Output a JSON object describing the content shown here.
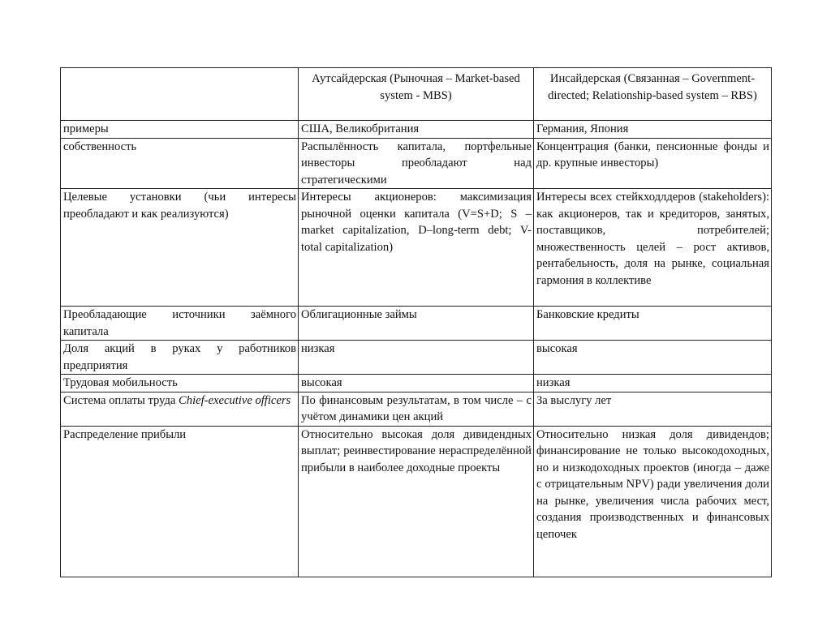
{
  "table": {
    "header": [
      "",
      "Аутсайдерская (Рыночная – Market-based system - MBS)",
      "Инсайдерская (Связанная – Government-directed; Relationship-based system – RBS)"
    ],
    "rows": [
      [
        "примеры",
        "США, Великобритания",
        "Германия, Япония"
      ],
      [
        "собственность",
        "Распылённость капитала, портфельные инвесторы преобладают над стратегическими",
        "Концентрация (банки, пенсионные фонды и др. крупные инвесторы)"
      ],
      [
        "Целевые установки (чьи интересы преобладают и как реализуются)",
        "Интересы акционеров: максимизация рыночной оценки капитала (V=S+D; S – market capitalization, D–long-term debt; V- total capitalization)",
        "Интересы всех стейкходлдеров (stakeholders): как акционеров, так и кредиторов, занятых, поставщиков, потребителей; множественность целей – рост активов, рентабельность, доля на рынке, социальная гармония в коллективе"
      ],
      [
        "Преобладающие источники заёмного капитала",
        "Облигационные займы",
        "Банковские кредиты"
      ],
      [
        "Доля акций в руках у работников предприятия",
        "низкая",
        "высокая"
      ],
      [
        "Трудовая мобильность",
        "высокая",
        "низкая"
      ],
      [
        "Система оплаты труда ",
        "По финансовым результатам, в том числе – с учётом динамики цен акций",
        "За выслугу лет"
      ],
      [
        "Распределение прибыли",
        "Относительно высокая доля дивидендных выплат; реинвестирование нераспределённой прибыли в наиболее доходные проекты",
        "Относительно низкая доля дивидендов; финансирование не только высокодоходных, но и низкодоходных проектов (иногда – даже с отрицательным NPV) ради увеличения доли на рынке, увеличения числа рабочих мест, создания производственных и финансовых цепочек"
      ]
    ],
    "row7_italic": "Chief-executive officers"
  }
}
